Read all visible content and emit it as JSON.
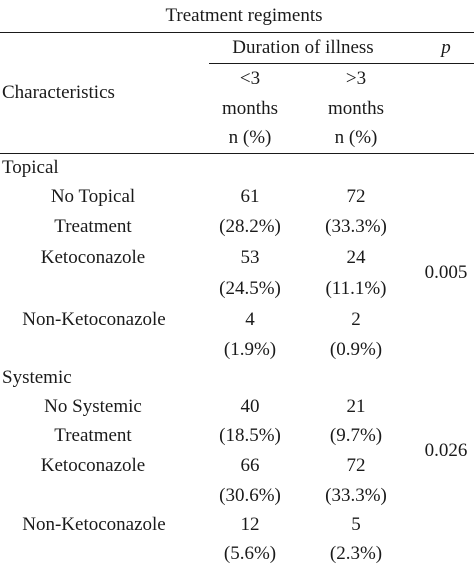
{
  "table": {
    "title": "Treatment regiments",
    "header": {
      "characteristics": "Characteristics",
      "duration": "Duration of illness",
      "p": "p",
      "col1": [
        "<3",
        "months",
        "n (%)"
      ],
      "col2": [
        ">3",
        "months",
        "n (%)"
      ]
    },
    "sections": [
      {
        "name": "Topical",
        "p_value": "0.005",
        "rows": [
          {
            "label": [
              "No Topical",
              "Treatment"
            ],
            "lt3": [
              "61",
              "(28.2%)"
            ],
            "gt3": [
              "72",
              "(33.3%)"
            ]
          },
          {
            "label": [
              "Ketoconazole"
            ],
            "lt3": [
              "53",
              "(24.5%)"
            ],
            "gt3": [
              "24",
              "(11.1%)"
            ]
          },
          {
            "label": [
              "Non-Ketoconazole"
            ],
            "lt3": [
              "4",
              "(1.9%)"
            ],
            "gt3": [
              "2",
              "(0.9%)"
            ]
          }
        ]
      },
      {
        "name": "Systemic",
        "p_value": "0.026",
        "rows": [
          {
            "label": [
              "No Systemic",
              "Treatment"
            ],
            "lt3": [
              "40",
              "(18.5%)"
            ],
            "gt3": [
              "21",
              "(9.7%)"
            ]
          },
          {
            "label": [
              "Ketoconazole"
            ],
            "lt3": [
              "66",
              "(30.6%)"
            ],
            "gt3": [
              "72",
              "(33.3%)"
            ]
          },
          {
            "label": [
              "Non-Ketoconazole"
            ],
            "lt3": [
              "12",
              "(5.6%)"
            ],
            "gt3": [
              "5",
              "(2.3%)"
            ]
          }
        ]
      }
    ]
  }
}
